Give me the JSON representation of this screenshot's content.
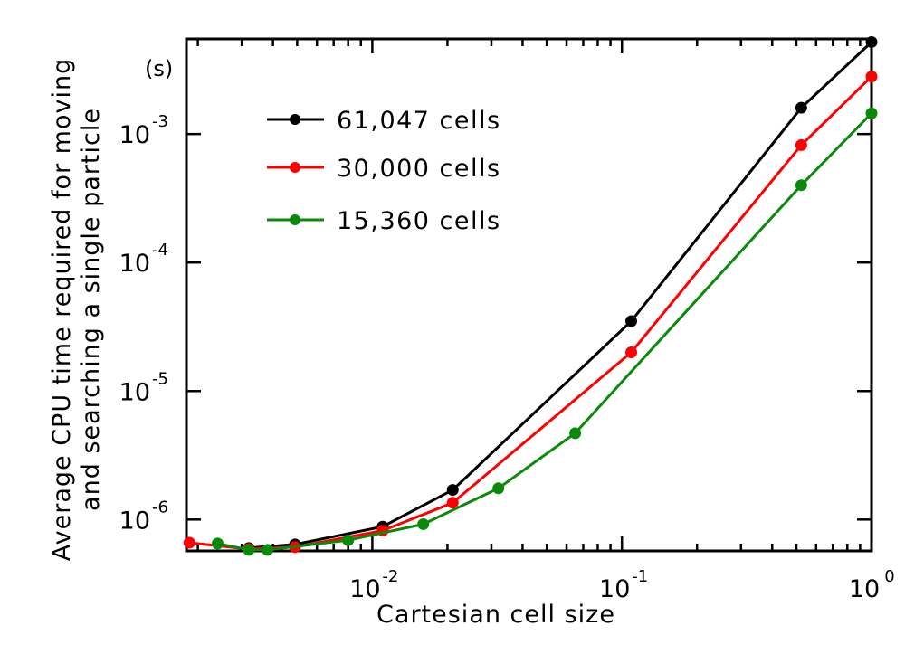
{
  "chart_data": {
    "type": "line",
    "xlabel": "Cartesian cell size",
    "ylabel": [
      "Average CPU time required for moving",
      "and searching a single particle"
    ],
    "unit_annotation": "(s)",
    "x_scale": "log",
    "y_scale": "log",
    "xlim": [
      0.0018,
      1.0
    ],
    "ylim": [
      5.7e-07,
      0.0055
    ],
    "x_ticks": [
      {
        "value": 0.01,
        "base": "10",
        "exp": "-2"
      },
      {
        "value": 0.1,
        "base": "10",
        "exp": "-1"
      },
      {
        "value": 1,
        "base": "10",
        "exp": "0"
      }
    ],
    "y_ticks": [
      {
        "value": 1e-06,
        "base": "10",
        "exp": "-6"
      },
      {
        "value": 1e-05,
        "base": "10",
        "exp": "-5"
      },
      {
        "value": 0.0001,
        "base": "10",
        "exp": "-4"
      },
      {
        "value": 0.001,
        "base": "10",
        "exp": "-3"
      }
    ],
    "legend_position": "top-left",
    "grid": false,
    "series": [
      {
        "name": "61,047 cells",
        "color": "#000000",
        "points": [
          {
            "x": 0.0032,
            "y": 6e-07
          },
          {
            "x": 0.0049,
            "y": 6.4e-07
          },
          {
            "x": 0.011,
            "y": 8.8e-07
          },
          {
            "x": 0.021,
            "y": 1.7e-06
          },
          {
            "x": 0.109,
            "y": 3.5e-05
          },
          {
            "x": 0.523,
            "y": 0.0016
          },
          {
            "x": 1.0,
            "y": 0.0052
          }
        ]
      },
      {
        "name": "30,000 cells",
        "color": "#ff0000",
        "points": [
          {
            "x": 0.00185,
            "y": 6.6e-07
          },
          {
            "x": 0.0032,
            "y": 5.9e-07
          },
          {
            "x": 0.0049,
            "y": 6.1e-07
          },
          {
            "x": 0.011,
            "y": 8.2e-07
          },
          {
            "x": 0.021,
            "y": 1.35e-06
          },
          {
            "x": 0.109,
            "y": 2e-05
          },
          {
            "x": 0.523,
            "y": 0.00082
          },
          {
            "x": 1.0,
            "y": 0.0028
          }
        ]
      },
      {
        "name": "15,360 cells",
        "color": "#0a8a0a",
        "points": [
          {
            "x": 0.0024,
            "y": 6.5e-07
          },
          {
            "x": 0.0032,
            "y": 5.8e-07
          },
          {
            "x": 0.0038,
            "y": 5.8e-07
          },
          {
            "x": 0.008,
            "y": 6.9e-07
          },
          {
            "x": 0.016,
            "y": 9.2e-07
          },
          {
            "x": 0.032,
            "y": 1.75e-06
          },
          {
            "x": 0.065,
            "y": 4.7e-06
          },
          {
            "x": 0.523,
            "y": 0.0004
          },
          {
            "x": 1.0,
            "y": 0.00145
          }
        ]
      }
    ]
  }
}
